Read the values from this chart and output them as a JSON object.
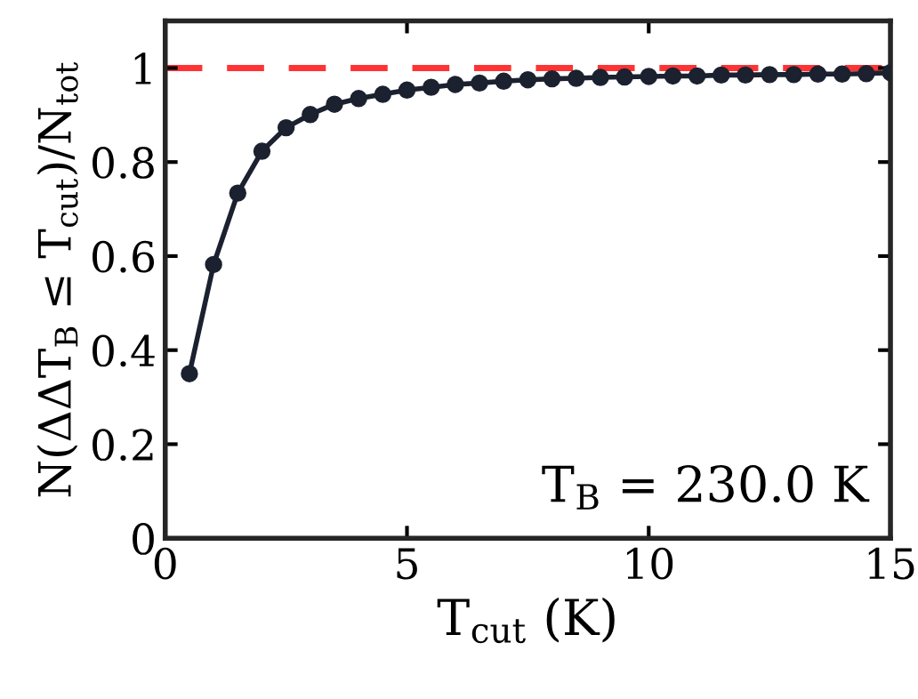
{
  "chart_data": {
    "type": "line",
    "xlabel": "T$_{cut}$ (K)",
    "ylabel": "N(ΔΔT$_{B}$ ≤ T$_{cut}$)/N$_{tot}$",
    "annotations": [
      "T$_{B}$ = 230.0 K"
    ],
    "x": [
      0.5,
      1.0,
      1.5,
      2.0,
      2.5,
      3.0,
      3.5,
      4.0,
      4.5,
      5.0,
      5.5,
      6.0,
      6.5,
      7.0,
      7.5,
      8.0,
      8.5,
      9.0,
      9.5,
      10.0,
      10.5,
      11.0,
      11.5,
      12.0,
      12.5,
      13.0,
      13.5,
      14.0,
      14.5,
      15.0
    ],
    "series": [
      {
        "color": "#1c2130",
        "values": [
          0.35,
          0.582,
          0.734,
          0.823,
          0.873,
          0.901,
          0.923,
          0.935,
          0.944,
          0.953,
          0.959,
          0.965,
          0.968,
          0.972,
          0.975,
          0.977,
          0.978,
          0.98,
          0.981,
          0.982,
          0.983,
          0.983,
          0.985,
          0.985,
          0.986,
          0.986,
          0.987,
          0.987,
          0.988,
          0.99
        ]
      }
    ],
    "marker": "circle",
    "line_style": "solid",
    "grid": false,
    "legend": false,
    "xlim": [
      0,
      15
    ],
    "ylim": [
      0,
      1.1
    ],
    "xticks": [
      0,
      5,
      10,
      15
    ],
    "yticks": [
      0,
      0.2,
      0.4,
      0.6,
      0.8,
      1
    ],
    "ref_lines": [
      {
        "axis": "y",
        "value": 1,
        "color": "#ff3333",
        "line_style": "dashed"
      }
    ]
  }
}
